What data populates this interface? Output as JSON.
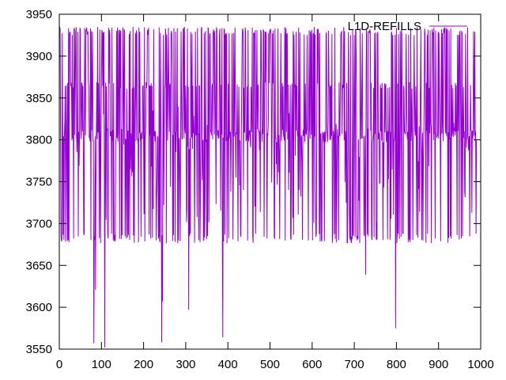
{
  "chart_data": {
    "type": "line",
    "title": "",
    "xlabel": "",
    "ylabel": "",
    "xlim": [
      0,
      1000
    ],
    "ylim": [
      3550,
      3950
    ],
    "xticks": [
      0,
      100,
      200,
      300,
      400,
      500,
      600,
      700,
      800,
      900,
      1000
    ],
    "yticks": [
      3550,
      3600,
      3650,
      3700,
      3750,
      3800,
      3850,
      3900,
      3950
    ],
    "grid": false,
    "legend_position": "top-right",
    "series": [
      {
        "name": "L1D-REFILLS",
        "color": "#9400d3",
        "point_count": 991,
        "baseline": 3805,
        "high_levels": [
          3865,
          3930
        ],
        "low_level": 3680,
        "spikes": [
          {
            "x": 82,
            "y": 3557
          },
          {
            "x": 86,
            "y": 3621
          },
          {
            "x": 108,
            "y": 3552
          },
          {
            "x": 243,
            "y": 3558
          },
          {
            "x": 245,
            "y": 3607
          },
          {
            "x": 307,
            "y": 3597
          },
          {
            "x": 388,
            "y": 3564
          },
          {
            "x": 727,
            "y": 3639
          },
          {
            "x": 798,
            "y": 3575
          }
        ]
      }
    ]
  }
}
